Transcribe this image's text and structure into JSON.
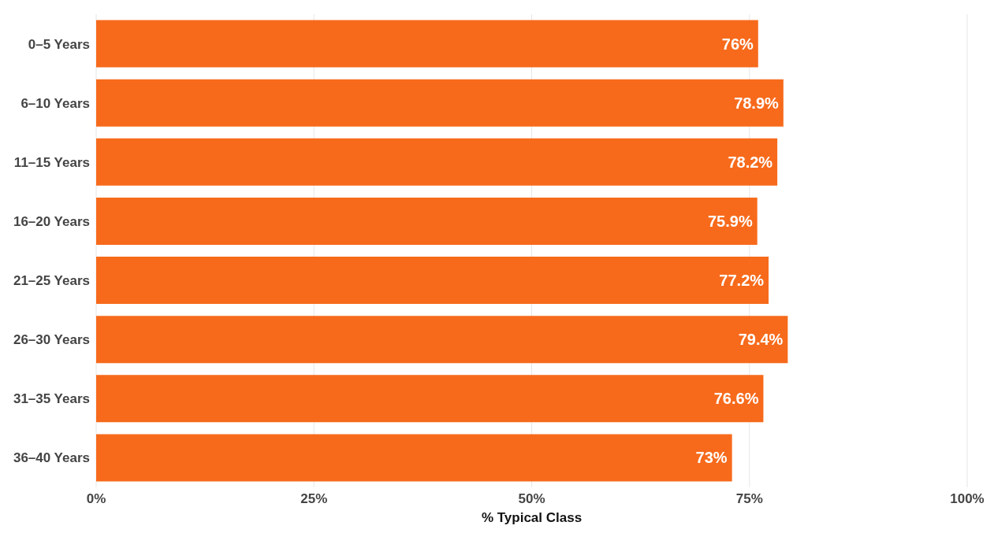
{
  "chart_data": {
    "type": "bar",
    "orientation": "horizontal",
    "xlabel": "% Typical Class",
    "categories": [
      "0–5 Years",
      "6–10 Years",
      "11–15 Years",
      "16–20 Years",
      "21–25 Years",
      "26–30 Years",
      "31–35 Years",
      "36–40 Years"
    ],
    "values": [
      76,
      78.9,
      78.2,
      75.9,
      77.2,
      79.4,
      76.6,
      73
    ],
    "value_labels": [
      "76%",
      "78.9%",
      "78.2%",
      "75.9%",
      "77.2%",
      "79.4%",
      "76.6%",
      "73%"
    ],
    "color": "#f76a1b",
    "xlim": [
      0,
      100
    ],
    "xticks": [
      {
        "value": 0,
        "label": "0%"
      },
      {
        "value": 25,
        "label": "25%"
      },
      {
        "value": 50,
        "label": "50%"
      },
      {
        "value": 75,
        "label": "75%"
      },
      {
        "value": 100,
        "label": "100%"
      }
    ],
    "grid": "x"
  }
}
